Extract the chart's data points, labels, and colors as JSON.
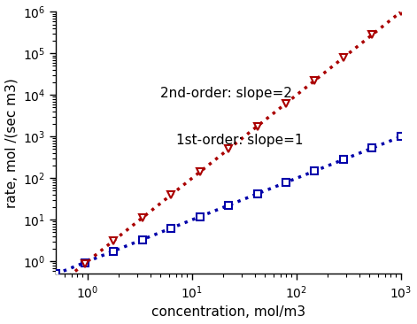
{
  "title": "",
  "xlabel": "concentration, mol/m3",
  "ylabel": "rate, mol /(sec m3)",
  "x_log_min": -0.301,
  "x_log_max": 3.0,
  "y_log_min": -0.301,
  "y_log_max": 6.0,
  "line1_color": "#0000AA",
  "line1_marker": "s",
  "line1_k": 1.0,
  "line1_order": 1,
  "line2_color": "#AA0000",
  "line2_marker": "v",
  "line2_k": 1.0,
  "line2_order": 2,
  "annotation1_text": "2nd-order: slope=2",
  "annotation2_text": "1st-order: slope=1",
  "bg_color": "#FFFFFF",
  "xlabel_fontsize": 11,
  "ylabel_fontsize": 11,
  "annotation_fontsize": 11,
  "tick_fontsize": 10,
  "linewidth": 2.5,
  "markersize": 6,
  "n_markers": 13
}
